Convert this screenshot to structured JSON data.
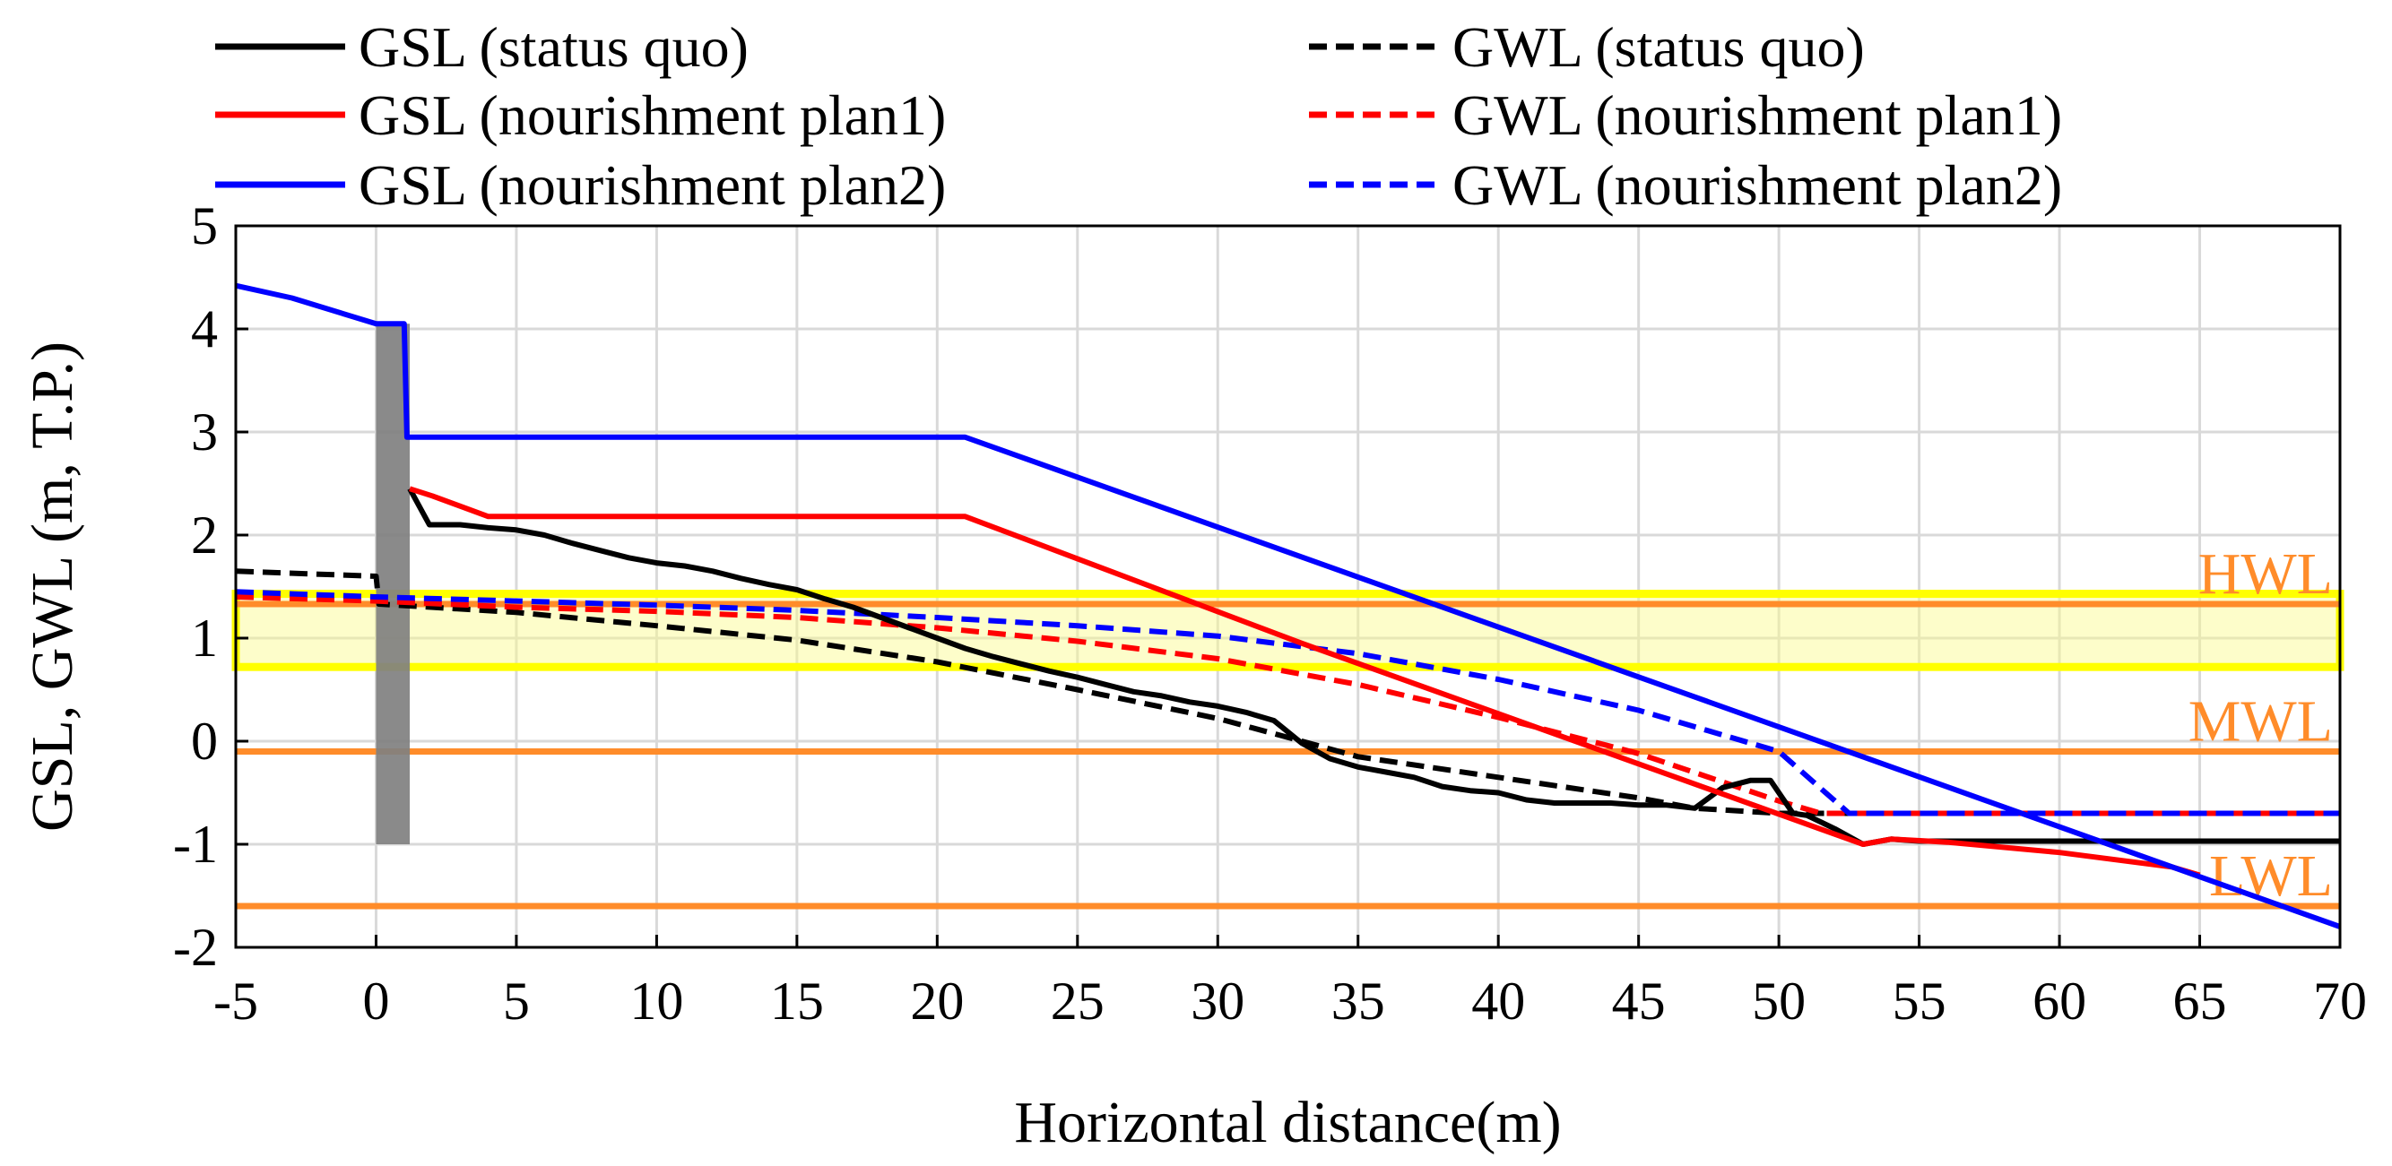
{
  "chart_data": {
    "type": "line",
    "title": "",
    "xlabel": "Horizontal distance(m)",
    "ylabel": "GSL, GWL (m, T.P.)",
    "xlim": [
      -5,
      70
    ],
    "ylim": [
      -2,
      5
    ],
    "xticks": [
      -5,
      0,
      5,
      10,
      15,
      20,
      25,
      30,
      35,
      40,
      45,
      50,
      55,
      60,
      65,
      70
    ],
    "yticks": [
      -2,
      -1,
      0,
      1,
      2,
      3,
      4,
      5
    ],
    "grid": true,
    "legend_position": "top",
    "colors": {
      "status_quo": "#000000",
      "plan1": "#ff0000",
      "plan2": "#0000ff",
      "reference": "#ff8c2a",
      "tidal_band": "#fbfb8a",
      "seawall": "#808080",
      "grid": "#d9d9d9"
    },
    "series": [
      {
        "name": "GSL (status quo)",
        "color": "#000000",
        "dashed": false,
        "x": [
          1.2,
          1.9,
          3,
          4,
          5,
          6,
          7,
          8,
          9,
          10,
          11,
          12,
          13,
          14,
          15,
          16,
          17,
          18,
          19,
          20,
          21,
          22,
          23,
          24,
          25,
          26,
          27,
          28,
          29,
          30,
          31,
          32,
          33,
          34,
          35,
          36,
          37,
          38,
          39,
          40,
          41,
          42,
          43,
          44,
          45,
          46,
          47,
          48,
          49,
          49.7,
          50.5,
          51,
          52,
          53,
          54,
          55,
          60,
          65,
          70
        ],
        "y": [
          2.45,
          2.1,
          2.1,
          2.07,
          2.05,
          2.0,
          1.92,
          1.85,
          1.78,
          1.73,
          1.7,
          1.65,
          1.58,
          1.52,
          1.47,
          1.38,
          1.3,
          1.2,
          1.1,
          1.0,
          0.9,
          0.82,
          0.75,
          0.68,
          0.62,
          0.55,
          0.48,
          0.44,
          0.38,
          0.34,
          0.28,
          0.2,
          -0.02,
          -0.17,
          -0.25,
          -0.3,
          -0.35,
          -0.44,
          -0.48,
          -0.5,
          -0.57,
          -0.6,
          -0.6,
          -0.6,
          -0.62,
          -0.62,
          -0.65,
          -0.45,
          -0.38,
          -0.38,
          -0.7,
          -0.72,
          -0.85,
          -1.0,
          -0.95,
          -0.97,
          -0.97,
          -0.97,
          -0.97
        ]
      },
      {
        "name": "GSL (nourishment plan1)",
        "color": "#ff0000",
        "dashed": false,
        "x": [
          1.2,
          2,
          4,
          21,
          33,
          53,
          54,
          56,
          60,
          64,
          65
        ],
        "y": [
          2.45,
          2.38,
          2.18,
          2.18,
          0.95,
          -1.0,
          -0.95,
          -0.98,
          -1.08,
          -1.22,
          -1.3
        ]
      },
      {
        "name": "GSL (nourishment plan2)",
        "color": "#0000ff",
        "dashed": false,
        "x": [
          -5,
          -3,
          0,
          1,
          1.1,
          21,
          70
        ],
        "y": [
          4.42,
          4.3,
          4.05,
          4.05,
          2.95,
          2.95,
          -1.8
        ]
      },
      {
        "name": "GWL (status quo)",
        "color": "#000000",
        "dashed": true,
        "x": [
          -5,
          0,
          0.1,
          5,
          10,
          15,
          20,
          25,
          30,
          33,
          35,
          40,
          45,
          47,
          50,
          55,
          60,
          65,
          70
        ],
        "y": [
          1.65,
          1.6,
          1.33,
          1.25,
          1.12,
          0.98,
          0.77,
          0.5,
          0.22,
          0.0,
          -0.15,
          -0.35,
          -0.55,
          -0.65,
          -0.7,
          -0.7,
          -0.7,
          -0.7,
          -0.7
        ]
      },
      {
        "name": "GWL (nourishment plan1)",
        "color": "#ff0000",
        "dashed": true,
        "x": [
          -5,
          0,
          5,
          10,
          15,
          20,
          25,
          30,
          35,
          40,
          45,
          50,
          51.5,
          55,
          60,
          65,
          70
        ],
        "y": [
          1.4,
          1.36,
          1.3,
          1.26,
          1.2,
          1.1,
          0.97,
          0.8,
          0.55,
          0.23,
          -0.12,
          -0.58,
          -0.7,
          -0.7,
          -0.7,
          -0.7,
          -0.7
        ]
      },
      {
        "name": "GWL (nourishment plan2)",
        "color": "#0000ff",
        "dashed": true,
        "x": [
          -5,
          0,
          5,
          10,
          15,
          20,
          25,
          30,
          35,
          40,
          45,
          50,
          52.5,
          55,
          60,
          65,
          70
        ],
        "y": [
          1.45,
          1.4,
          1.36,
          1.32,
          1.27,
          1.2,
          1.12,
          1.02,
          0.85,
          0.6,
          0.3,
          -0.1,
          -0.7,
          -0.7,
          -0.7,
          -0.7,
          -0.7
        ]
      }
    ],
    "reference_lines": [
      {
        "label": "HWL",
        "y": 1.33
      },
      {
        "label": "MWL",
        "y": -0.1
      },
      {
        "label": "LWL",
        "y": -1.6
      }
    ],
    "tidal_band": {
      "y_min": 0.72,
      "y_max": 1.43
    },
    "seawall": {
      "x_min": 0,
      "x_max": 1.2,
      "y_min": -1.0,
      "y_max": 4.05
    }
  }
}
